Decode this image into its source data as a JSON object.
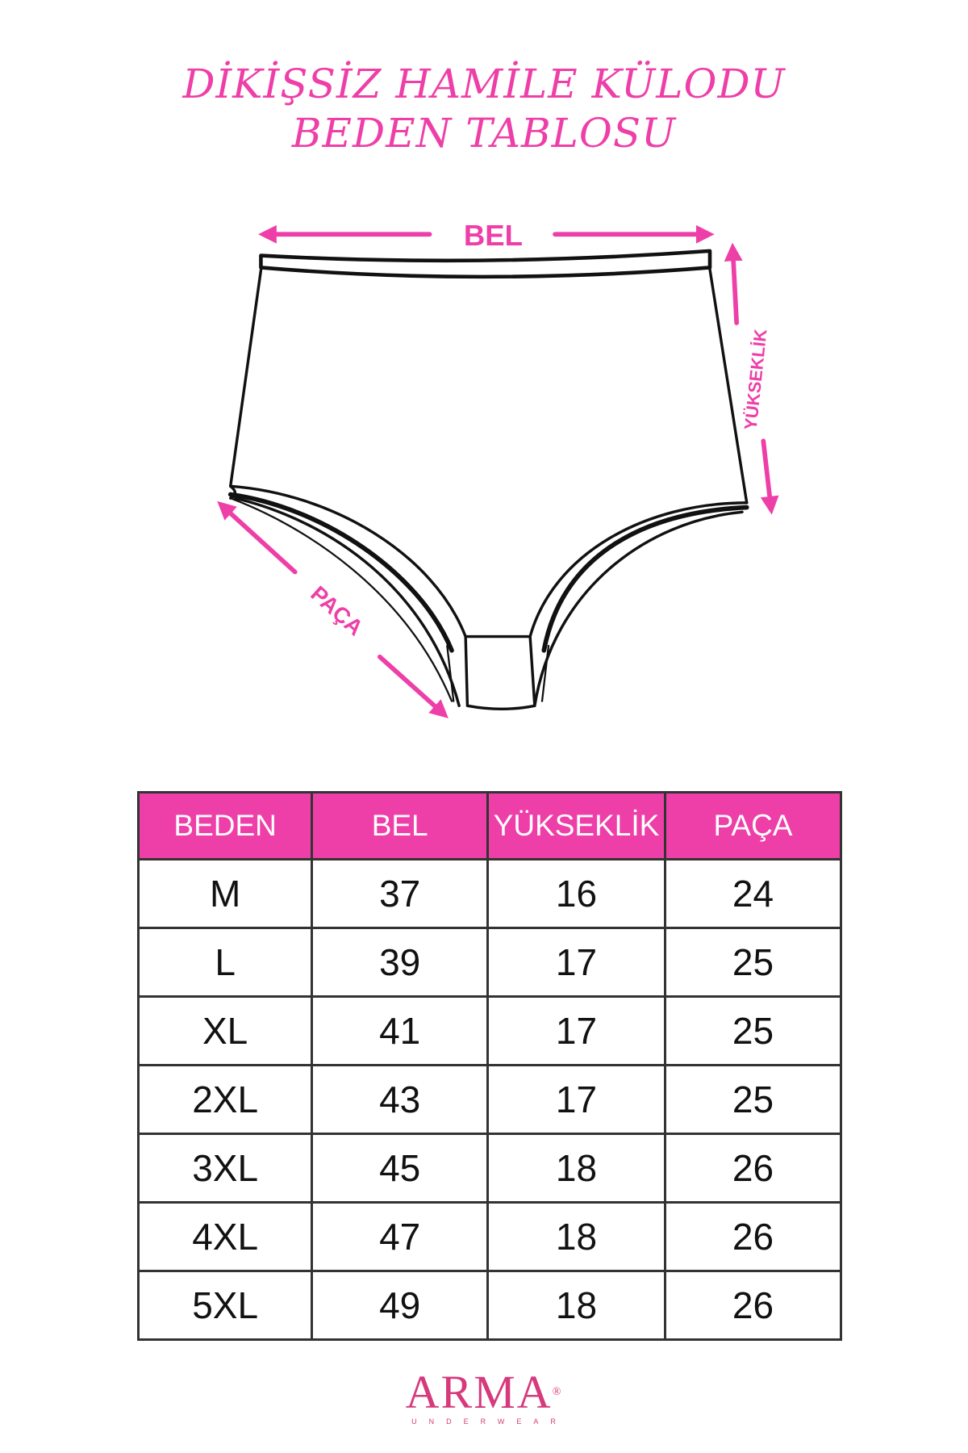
{
  "title": {
    "line1": "DİKİŞSİZ HAMİLE KÜLODU",
    "line2": "BEDEN TABLOSU"
  },
  "diagram": {
    "bel_label": "BEL",
    "height_label": "YÜKSEKLİK",
    "leg_label": "PAÇA"
  },
  "colors": {
    "accent": "#EE3FA8",
    "logo": "#D63A7C",
    "border": "#333333"
  },
  "table": {
    "headers": [
      "BEDEN",
      "BEL",
      "YÜKSEKLİK",
      "PAÇA"
    ],
    "rows": [
      [
        "M",
        "37",
        "16",
        "24"
      ],
      [
        "L",
        "39",
        "17",
        "25"
      ],
      [
        "XL",
        "41",
        "17",
        "25"
      ],
      [
        "2XL",
        "43",
        "17",
        "25"
      ],
      [
        "3XL",
        "45",
        "18",
        "26"
      ],
      [
        "4XL",
        "47",
        "18",
        "26"
      ],
      [
        "5XL",
        "49",
        "18",
        "26"
      ]
    ]
  },
  "logo": {
    "brand": "ARMA",
    "registered": "®",
    "subtitle": "UNDERWEAR"
  }
}
